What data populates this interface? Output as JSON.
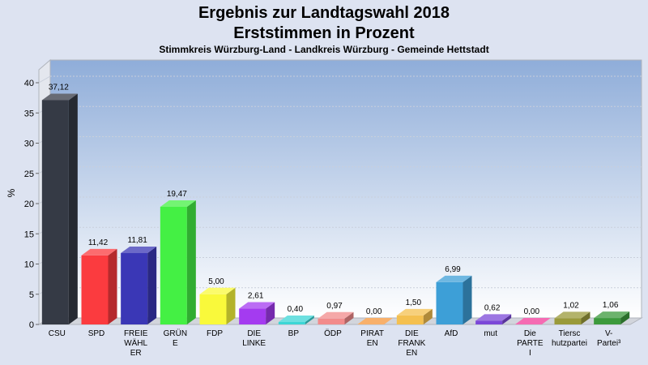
{
  "chart_data": {
    "type": "bar",
    "title_line1": "Ergebnis zur Landtagswahl 2018",
    "title_line2": "Erststimmen in Prozent",
    "subtitle": "Stimmkreis Würzburg-Land - Landkreis Würzburg - Gemeinde Hettstadt",
    "ylabel": "%",
    "xlabel": "",
    "ylim": [
      0,
      43
    ],
    "yticks": [
      0,
      5,
      10,
      15,
      20,
      25,
      30,
      35,
      40
    ],
    "grid": true,
    "legend": "none",
    "bars": [
      {
        "label": [
          "CSU"
        ],
        "value": 37.12,
        "value_label": "37,12",
        "color": "#353a45"
      },
      {
        "label": [
          "SPD"
        ],
        "value": 11.42,
        "value_label": "11,42",
        "color": "#fb3b3f"
      },
      {
        "label": [
          "FREIE",
          "WÄHL",
          "ER"
        ],
        "value": 11.81,
        "value_label": "11,81",
        "color": "#3a37b6"
      },
      {
        "label": [
          "GRÜN",
          "E"
        ],
        "value": 19.47,
        "value_label": "19,47",
        "color": "#44f044"
      },
      {
        "label": [
          "FDP"
        ],
        "value": 5.0,
        "value_label": "5,00",
        "color": "#f9f93b"
      },
      {
        "label": [
          "DIE",
          "LINKE"
        ],
        "value": 2.61,
        "value_label": "2,61",
        "color": "#a43bf0"
      },
      {
        "label": [
          "BP"
        ],
        "value": 0.4,
        "value_label": "0,40",
        "color": "#3cd6d6"
      },
      {
        "label": [
          "ÖDP"
        ],
        "value": 0.97,
        "value_label": "0,97",
        "color": "#f28b8b"
      },
      {
        "label": [
          "PIRAT",
          "EN"
        ],
        "value": 0.0,
        "value_label": "0,00",
        "color": "#f5953a"
      },
      {
        "label": [
          "DIE",
          "FRANK",
          "EN"
        ],
        "value": 1.5,
        "value_label": "1,50",
        "color": "#f4c050"
      },
      {
        "label": [
          "AfD"
        ],
        "value": 6.99,
        "value_label": "6,99",
        "color": "#3d9fd7"
      },
      {
        "label": [
          "mut"
        ],
        "value": 0.62,
        "value_label": "0,62",
        "color": "#7b48d8"
      },
      {
        "label": [
          "Die",
          "PARTE",
          "I"
        ],
        "value": 0.0,
        "value_label": "0,00",
        "color": "#f23a9a"
      },
      {
        "label": [
          "Tiersc",
          "hutzpartei"
        ],
        "value": 1.02,
        "value_label": "1,02",
        "color": "#9a9a3a"
      },
      {
        "label": [
          "V-",
          "Partei³"
        ],
        "value": 1.06,
        "value_label": "1,06",
        "color": "#3c9a3c"
      }
    ]
  }
}
